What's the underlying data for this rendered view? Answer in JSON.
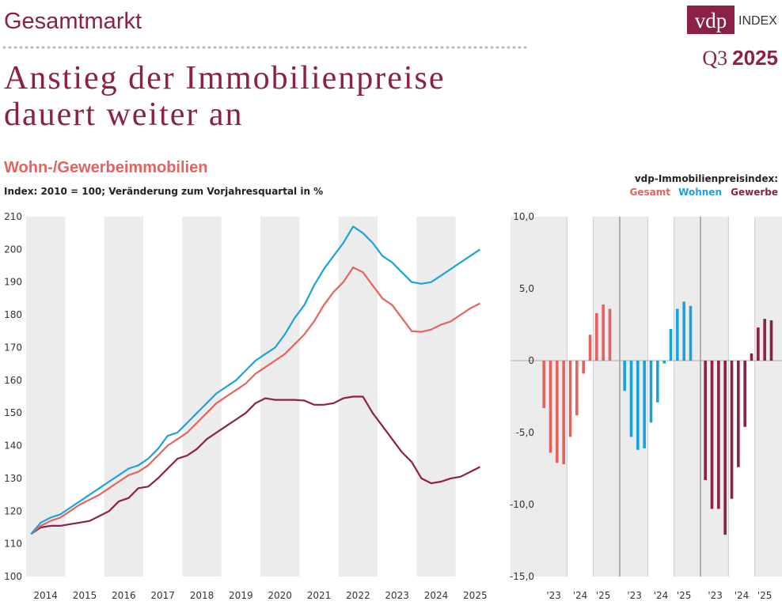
{
  "header": {
    "section": "Gesamtmarkt",
    "title_lines": [
      "Anstieg der Immobilienpreise",
      "dauert weiter an"
    ],
    "logo": "vdp",
    "logo_suffix": "INDEX",
    "quarter": "Q3",
    "year": "2025"
  },
  "chart_data": [
    {
      "type": "line",
      "title": "Wohn-/Gewerbeimmobilien",
      "subtitle": "Index: 2010 = 100; Veränderung zum Vorjahresquartal in %",
      "x": [
        2014.125,
        2014.375,
        2014.625,
        2014.875,
        2015.125,
        2015.375,
        2015.625,
        2015.875,
        2016.125,
        2016.375,
        2016.625,
        2016.875,
        2017.125,
        2017.375,
        2017.625,
        2017.875,
        2018.125,
        2018.375,
        2018.625,
        2018.875,
        2019.125,
        2019.375,
        2019.625,
        2019.875,
        2020.125,
        2020.375,
        2020.625,
        2020.875,
        2021.125,
        2021.375,
        2021.625,
        2021.875,
        2022.125,
        2022.375,
        2022.625,
        2022.875,
        2023.125,
        2023.375,
        2023.625,
        2023.875,
        2024.125,
        2024.375,
        2024.625,
        2024.875,
        2025.125,
        2025.375,
        2025.625
      ],
      "series": [
        {
          "color": "#8b2049",
          "values": [
            113,
            115,
            115.5,
            115.5,
            116,
            116.5,
            117,
            118.5,
            120,
            123,
            124,
            127,
            127.5,
            130,
            133,
            136,
            137,
            139,
            142,
            144,
            146,
            148,
            150,
            153,
            154.5,
            154,
            154,
            154,
            153.8,
            152.5,
            152.5,
            153,
            154.5,
            155,
            155,
            150,
            146,
            142,
            138,
            135,
            130,
            128.5,
            129,
            130,
            130.5,
            132,
            133.5
          ]
        },
        {
          "color": "#e5625f",
          "values": [
            113,
            115.5,
            117,
            118,
            120,
            122,
            123.5,
            125,
            127,
            129,
            131,
            132,
            134,
            137,
            140,
            142,
            144,
            147,
            150,
            153,
            155,
            157,
            159,
            162,
            164,
            166,
            168,
            171,
            174,
            178,
            183,
            187,
            190,
            194.5,
            193,
            189,
            185,
            183,
            179,
            175,
            174.8,
            175.5,
            177,
            178,
            180,
            182,
            183.5
          ]
        },
        {
          "color": "#1aa3d9",
          "values": [
            113,
            116.5,
            118,
            119,
            121,
            123,
            125,
            127,
            129,
            131,
            133,
            134,
            136,
            139,
            143,
            144,
            147,
            150,
            153,
            156,
            158,
            160,
            163,
            166,
            168,
            170,
            174,
            179,
            183,
            189,
            194,
            198,
            202,
            207,
            205,
            202,
            198,
            196,
            193,
            190,
            189.5,
            190,
            192,
            194,
            196,
            198,
            200
          ]
        }
      ],
      "xlim": [
        2014,
        2026
      ],
      "xticks": [
        {
          "value": 2014.5,
          "label": "2014"
        },
        {
          "value": 2015.5,
          "label": "2015"
        },
        {
          "value": 2016.5,
          "label": "2016"
        },
        {
          "value": 2017.5,
          "label": "2017"
        },
        {
          "value": 2018.5,
          "label": "2018"
        },
        {
          "value": 2019.5,
          "label": "2019"
        },
        {
          "value": 2020.5,
          "label": "2020"
        },
        {
          "value": 2021.5,
          "label": "2021"
        },
        {
          "value": 2022.5,
          "label": "2022"
        },
        {
          "value": 2023.5,
          "label": "2023"
        },
        {
          "value": 2024.5,
          "label": "2024"
        },
        {
          "value": 2025.5,
          "label": "2025"
        }
      ],
      "ylim": [
        100,
        210
      ],
      "yticks": [
        100,
        110,
        120,
        130,
        140,
        150,
        160,
        170,
        180,
        190,
        200,
        210
      ]
    },
    {
      "type": "bar",
      "legend_title": "vdp-Immobilienpreisindex:",
      "categories": [
        "'23",
        null,
        null,
        null,
        "'24",
        null,
        null,
        null,
        "'25",
        null,
        null
      ],
      "series": [
        {
          "name": "Gesamt",
          "color": "#e5625f",
          "values": [
            -3.3,
            -6.4,
            -7.1,
            -7.2,
            -5.3,
            -3.8,
            -0.9,
            1.8,
            3.3,
            3.9,
            3.6
          ]
        },
        {
          "name": "Wohnen",
          "color": "#1aa3d9",
          "values": [
            -2.1,
            -5.3,
            -6.2,
            -6.1,
            -4.3,
            -2.9,
            -0.2,
            2.2,
            3.6,
            4.1,
            3.8
          ]
        },
        {
          "name": "Gewerbe",
          "color": "#8b2049",
          "values": [
            -8.3,
            -10.3,
            -10.3,
            -12.1,
            -9.6,
            -7.4,
            -4.6,
            0.5,
            2.3,
            2.9,
            2.8
          ]
        }
      ],
      "ylim": [
        -15,
        10
      ],
      "yticks": [
        {
          "value": 10,
          "label": "10,0"
        },
        {
          "value": 5,
          "label": "5,0"
        },
        0,
        {
          "value": -5,
          "label": "-5,0"
        },
        {
          "value": -10,
          "label": "-10,0"
        },
        {
          "value": -15,
          "label": "-15,0"
        }
      ]
    }
  ]
}
